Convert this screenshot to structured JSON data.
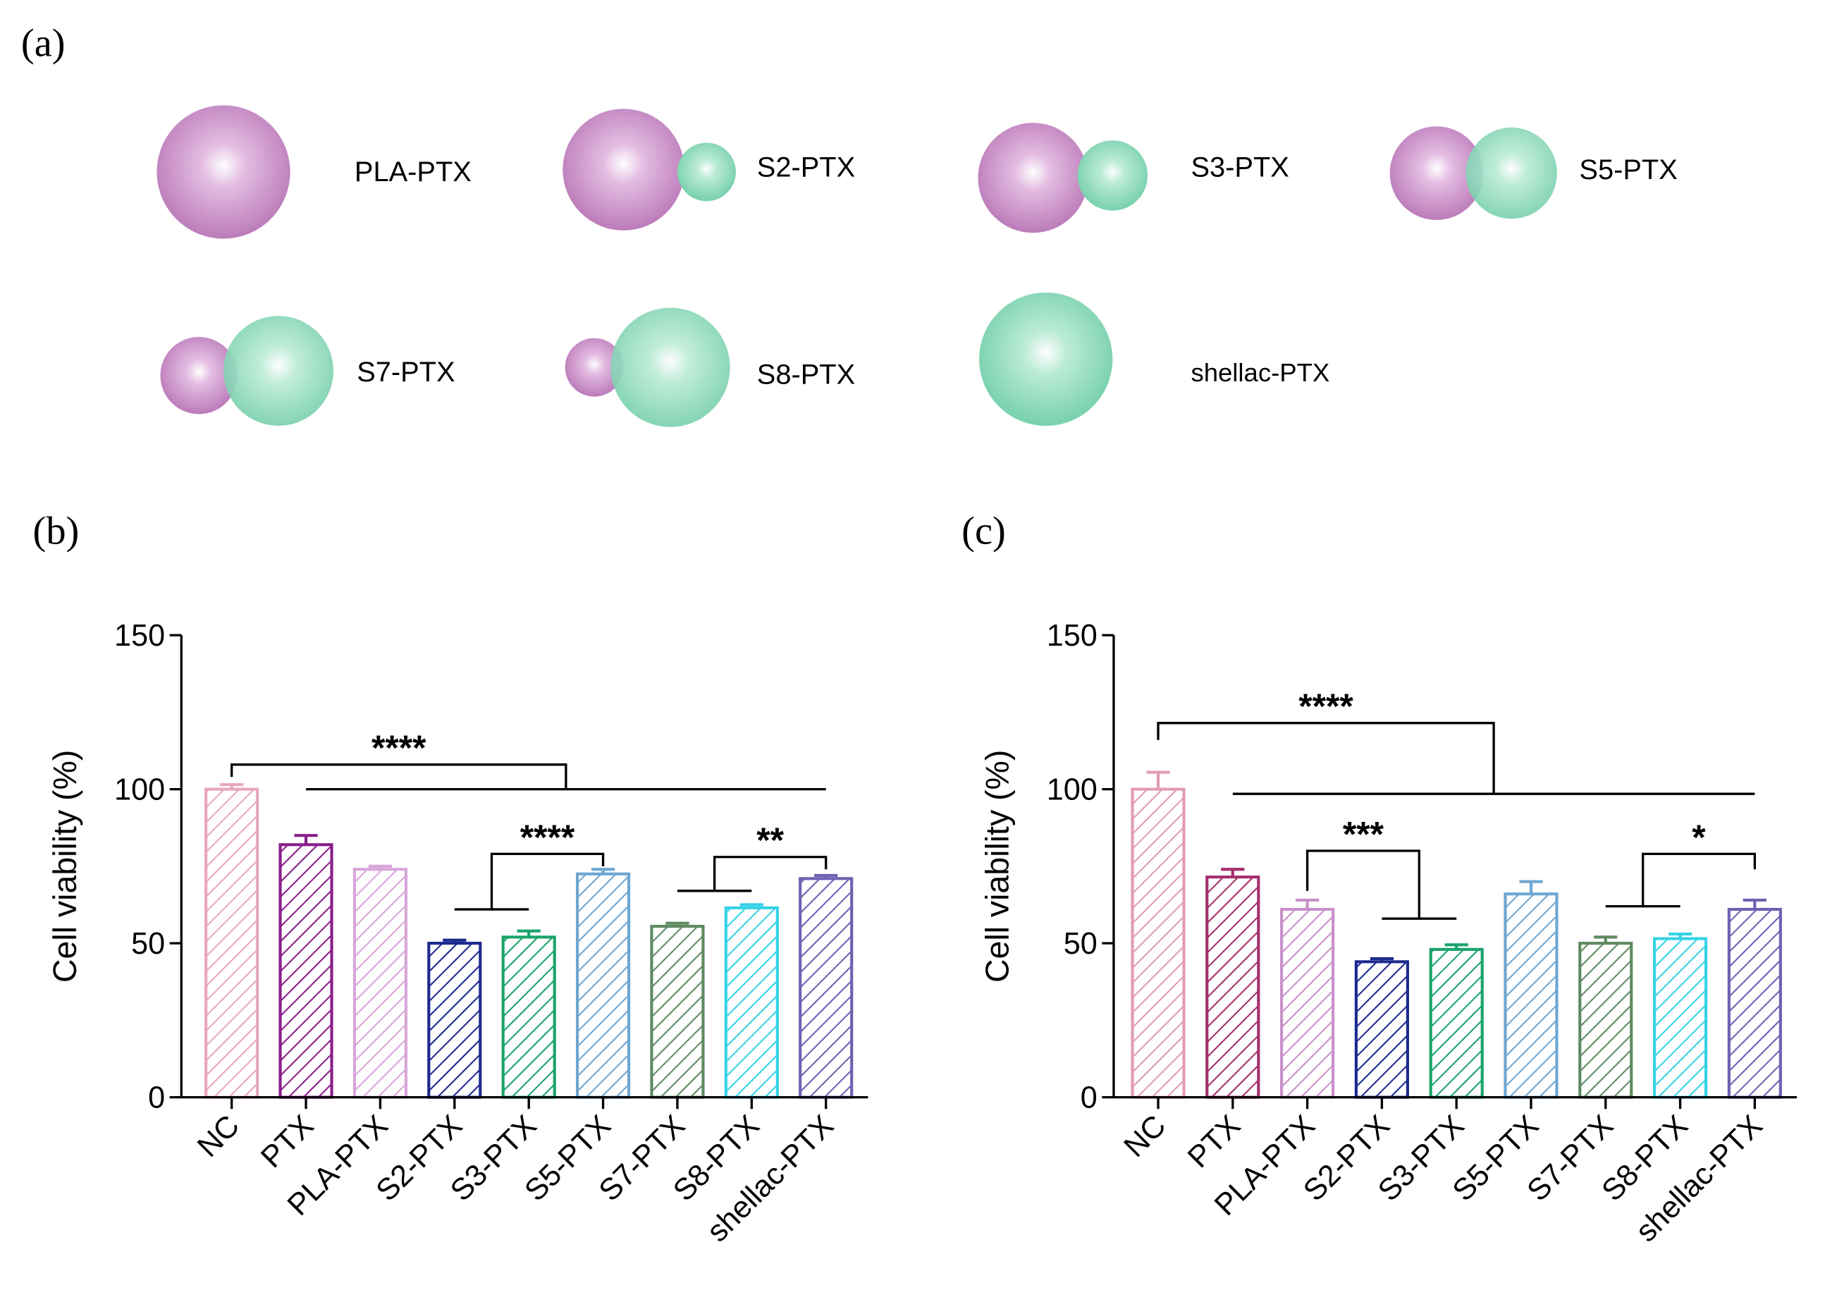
{
  "diagram": {
    "panel_label": "(a)",
    "particles": [
      "PLA-PTX",
      "S2-PTX",
      "S3-PTX",
      "S5-PTX",
      "S7-PTX",
      "S8-PTX",
      "shellac-PTX"
    ]
  },
  "chart_data": [
    {
      "type": "bar",
      "panel_label": "(b)",
      "y_label": "Cell viability (%)",
      "categories": [
        "NC",
        "PTX",
        "PLA-PTX",
        "S2-PTX",
        "S3-PTX",
        "S5-PTX",
        "S7-PTX",
        "S8-PTX",
        "shellac-PTX"
      ],
      "values": [
        100,
        82,
        74,
        50,
        52,
        72.5,
        55.5,
        61.5,
        71
      ],
      "errors": [
        1.5,
        3,
        1,
        1,
        2,
        1.5,
        1,
        1,
        1
      ],
      "colors": [
        "#e8a6bf",
        "#8a1f8a",
        "#d7a6d9",
        "#1c2a8e",
        "#1aa36c",
        "#6ea6d1",
        "#5f8a60",
        "#35d2e6",
        "#6f60b3"
      ],
      "ylim": [
        0,
        150
      ],
      "yticks": [
        0,
        50,
        100,
        150
      ],
      "annotations": [
        {
          "label": "****",
          "y": 108,
          "left": {
            "categories": [
              "NC"
            ],
            "y": 104
          },
          "right": {
            "categories": [
              "PTX",
              "shellac-PTX"
            ],
            "y": 100
          }
        },
        {
          "label": "****",
          "y": 79,
          "left": {
            "categories": [
              "S2-PTX",
              "S3-PTX"
            ],
            "y": 61
          },
          "right": {
            "categories": [
              "S5-PTX"
            ],
            "y": 75
          }
        },
        {
          "label": "**",
          "y": 78,
          "left": {
            "categories": [
              "S7-PTX",
              "S8-PTX"
            ],
            "y": 67
          },
          "right": {
            "categories": [
              "shellac-PTX"
            ],
            "y": 74
          }
        }
      ]
    },
    {
      "type": "bar",
      "panel_label": "(c)",
      "y_label": "Cell viability (%)",
      "categories": [
        "NC",
        "PTX",
        "PLA-PTX",
        "S2-PTX",
        "S3-PTX",
        "S5-PTX",
        "S7-PTX",
        "S8-PTX",
        "shellac-PTX"
      ],
      "values": [
        100,
        71.5,
        61,
        44,
        48,
        66,
        50,
        51.5,
        61
      ],
      "errors": [
        5.5,
        2.5,
        3,
        1,
        1.5,
        4,
        2,
        1.5,
        3
      ],
      "colors": [
        "#e19bb6",
        "#a3306c",
        "#c991c9",
        "#1c2a8e",
        "#1aa36c",
        "#6ea6d1",
        "#5f8a60",
        "#35d2e6",
        "#6f60b3"
      ],
      "ylim": [
        0,
        150
      ],
      "yticks": [
        0,
        50,
        100,
        150
      ],
      "annotations": [
        {
          "label": "****",
          "y": 121.5,
          "left": {
            "categories": [
              "NC"
            ],
            "y": 116
          },
          "right": {
            "categories": [
              "PTX",
              "shellac-PTX"
            ],
            "y": 98.5
          }
        },
        {
          "label": "***",
          "y": 80,
          "left": {
            "categories": [
              "PLA-PTX"
            ],
            "y": 67
          },
          "right": {
            "categories": [
              "S2-PTX",
              "S3-PTX"
            ],
            "y": 58
          }
        },
        {
          "label": "*",
          "y": 79,
          "left": {
            "categories": [
              "S7-PTX",
              "S8-PTX"
            ],
            "y": 62
          },
          "right": {
            "categories": [
              "shellac-PTX"
            ],
            "y": 74
          }
        }
      ]
    }
  ]
}
